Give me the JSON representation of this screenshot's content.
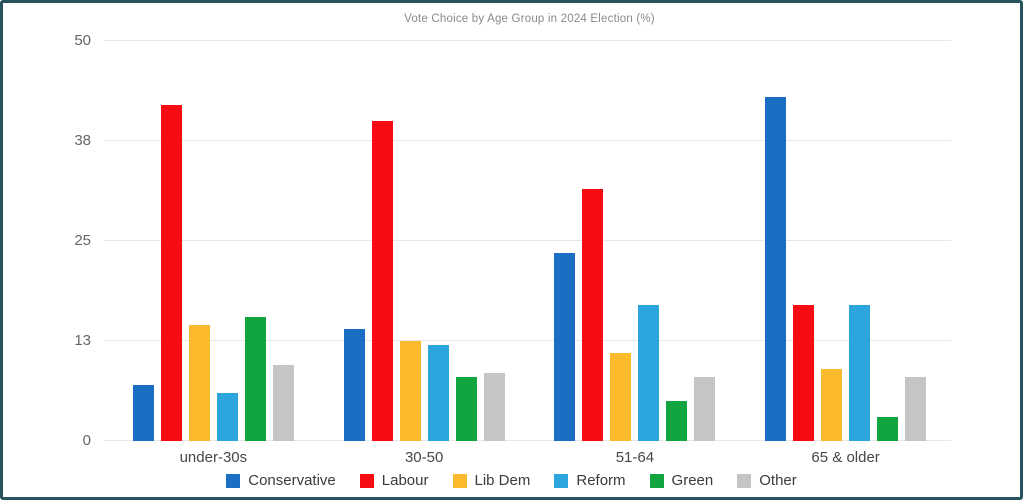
{
  "chart_data": {
    "type": "bar",
    "title": "Vote Choice by Age Group in 2024 Election (%)",
    "xlabel": "",
    "ylabel": "",
    "ylim": [
      0,
      50
    ],
    "grid": true,
    "legend_position": "bottom",
    "categories": [
      "under-30s",
      "30-50",
      "51-64",
      "65 & older"
    ],
    "yticks": [
      {
        "value": 0,
        "label": "0"
      },
      {
        "value": 12.5,
        "label": "13"
      },
      {
        "value": 25,
        "label": "25"
      },
      {
        "value": 37.5,
        "label": "38"
      },
      {
        "value": 50,
        "label": "50"
      }
    ],
    "series": [
      {
        "name": "Conservative",
        "color": "#1a6fc4",
        "values": [
          7,
          14,
          23.5,
          43
        ]
      },
      {
        "name": "Labour",
        "color": "#f80c13",
        "values": [
          42,
          40,
          31.5,
          17
        ]
      },
      {
        "name": "Lib Dem",
        "color": "#fcbb2d",
        "values": [
          14.5,
          12.5,
          11,
          9
        ]
      },
      {
        "name": "Reform",
        "color": "#2ca5dd",
        "values": [
          6,
          12,
          17,
          17
        ]
      },
      {
        "name": "Green",
        "color": "#12a43e",
        "values": [
          15.5,
          8,
          5,
          3
        ]
      },
      {
        "name": "Other",
        "color": "#c5c5c5",
        "values": [
          9.5,
          8.5,
          8,
          8
        ]
      }
    ]
  }
}
